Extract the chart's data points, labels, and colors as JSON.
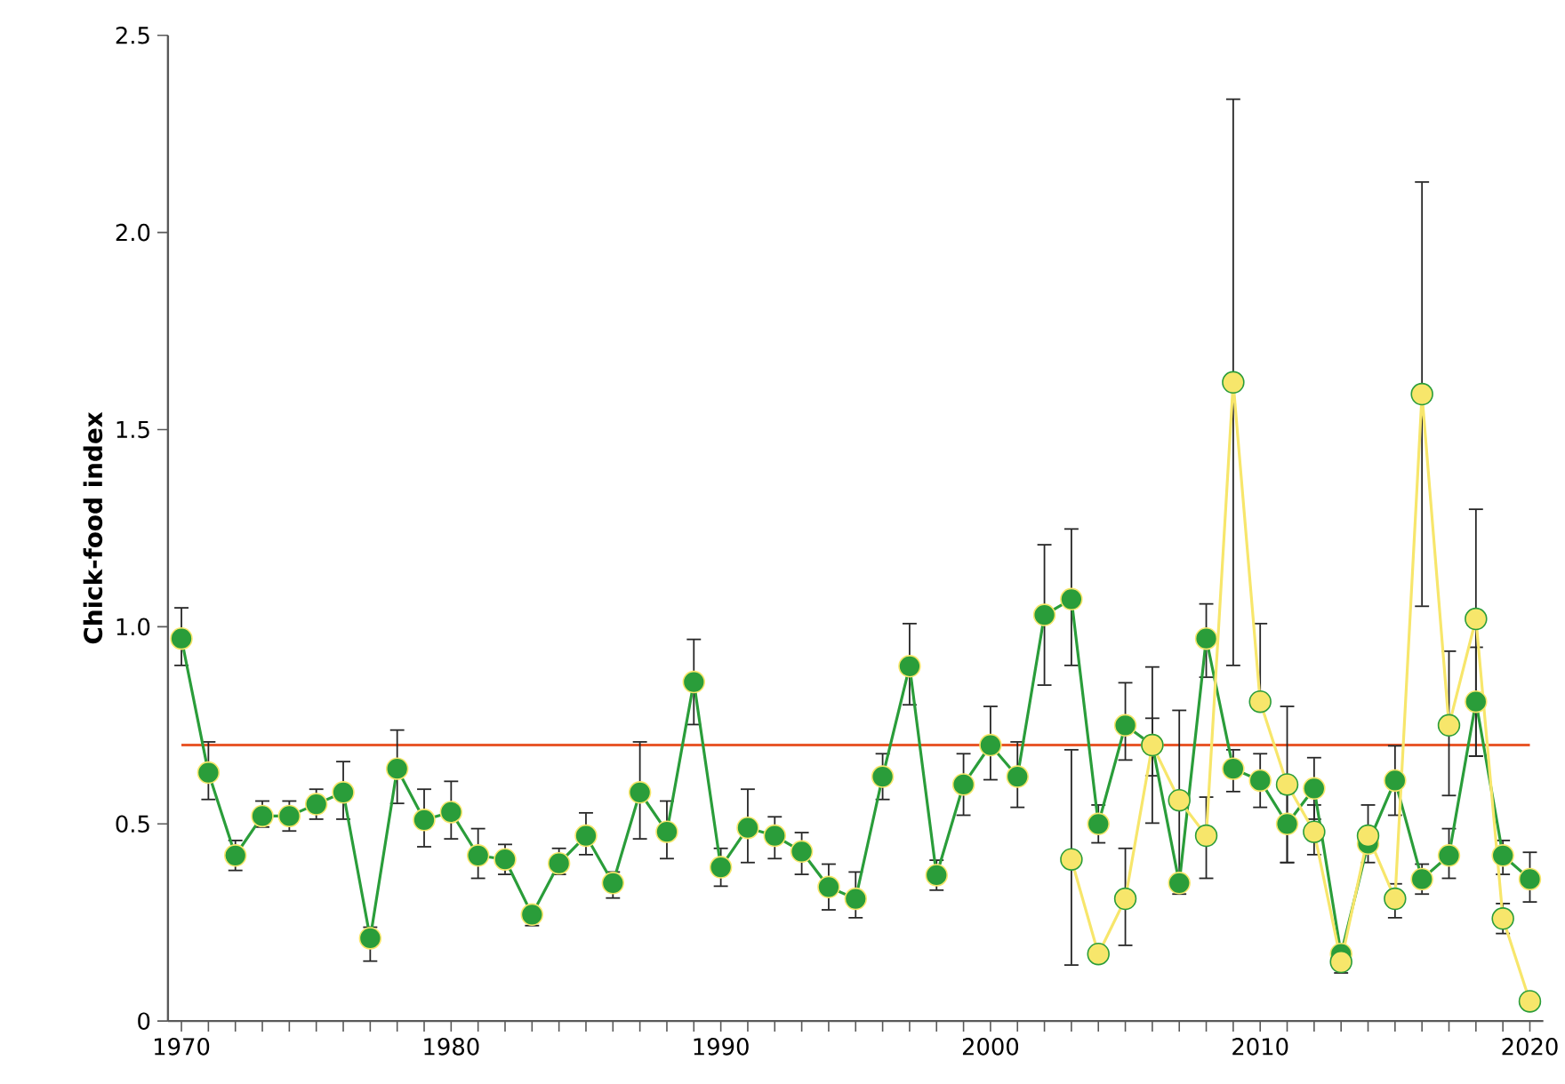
{
  "chart_data": {
    "type": "line",
    "ylabel": "Chick-food index",
    "x": [
      1970,
      1971,
      1972,
      1973,
      1974,
      1975,
      1976,
      1977,
      1978,
      1979,
      1980,
      1981,
      1982,
      1983,
      1984,
      1985,
      1986,
      1987,
      1988,
      1989,
      1990,
      1991,
      1992,
      1993,
      1994,
      1995,
      1996,
      1997,
      1998,
      1999,
      2000,
      2001,
      2002,
      2003,
      2004,
      2005,
      2006,
      2007,
      2008,
      2009,
      2010,
      2011,
      2012,
      2013,
      2014,
      2015,
      2016,
      2017,
      2018,
      2019,
      2020
    ],
    "series": [
      {
        "color": "#2a9d3a",
        "values": [
          0.97,
          0.63,
          0.42,
          0.52,
          0.52,
          0.55,
          0.58,
          0.21,
          0.64,
          0.51,
          0.53,
          0.42,
          0.41,
          0.27,
          0.4,
          0.47,
          0.35,
          0.58,
          0.48,
          0.86,
          0.39,
          0.49,
          0.47,
          0.43,
          0.34,
          0.31,
          0.62,
          0.9,
          0.37,
          0.6,
          0.7,
          0.62,
          1.03,
          1.07,
          0.5,
          0.75,
          0.7,
          0.35,
          0.97,
          0.64,
          0.61,
          0.5,
          0.59,
          0.17,
          0.45,
          0.61,
          0.36,
          0.42,
          0.81,
          0.42,
          0.36
        ],
        "errors": [
          [
            0.9,
            1.05
          ],
          [
            0.56,
            0.71
          ],
          [
            0.38,
            0.46
          ],
          [
            0.49,
            0.56
          ],
          [
            0.48,
            0.56
          ],
          [
            0.51,
            0.59
          ],
          [
            0.51,
            0.66
          ],
          [
            0.15,
            0.24
          ],
          [
            0.55,
            0.74
          ],
          [
            0.44,
            0.59
          ],
          [
            0.46,
            0.61
          ],
          [
            0.36,
            0.49
          ],
          [
            0.37,
            0.45
          ],
          [
            0.24,
            0.29
          ],
          [
            0.37,
            0.44
          ],
          [
            0.42,
            0.53
          ],
          [
            0.31,
            0.38
          ],
          [
            0.46,
            0.71
          ],
          [
            0.41,
            0.56
          ],
          [
            0.75,
            0.97
          ],
          [
            0.34,
            0.44
          ],
          [
            0.4,
            0.59
          ],
          [
            0.41,
            0.52
          ],
          [
            0.37,
            0.48
          ],
          [
            0.28,
            0.4
          ],
          [
            0.26,
            0.38
          ],
          [
            0.56,
            0.68
          ],
          [
            0.8,
            1.01
          ],
          [
            0.33,
            0.41
          ],
          [
            0.52,
            0.68
          ],
          [
            0.61,
            0.8
          ],
          [
            0.54,
            0.71
          ],
          [
            0.85,
            1.21
          ],
          [
            0.9,
            1.25
          ],
          [
            0.45,
            0.55
          ],
          [
            0.66,
            0.86
          ],
          [
            0.5,
            0.9
          ],
          null,
          [
            0.87,
            1.06
          ],
          [
            0.58,
            0.69
          ],
          [
            0.54,
            0.68
          ],
          [
            0.4,
            0.58
          ],
          [
            0.51,
            0.67
          ],
          [
            0.12,
            0.18
          ],
          [
            0.4,
            0.55
          ],
          [
            0.52,
            0.7
          ],
          [
            0.32,
            0.4
          ],
          [
            0.36,
            0.49
          ],
          [
            0.67,
            0.95
          ],
          [
            0.37,
            0.46
          ],
          [
            0.3,
            0.43
          ]
        ]
      },
      {
        "color": "#f7e66b",
        "x": [
          2003,
          2004,
          2005,
          2006,
          2007,
          2008,
          2009,
          2010,
          2011,
          2012,
          2013,
          2014,
          2015,
          2016,
          2017,
          2018,
          2019,
          2020
        ],
        "values": [
          0.41,
          0.17,
          0.31,
          0.7,
          0.56,
          0.47,
          1.62,
          0.81,
          0.6,
          0.48,
          0.15,
          0.47,
          0.31,
          1.59,
          0.75,
          1.02,
          0.26,
          0.05
        ],
        "errors": [
          [
            0.14,
            0.69
          ],
          null,
          [
            0.19,
            0.44
          ],
          [
            0.62,
            0.77
          ],
          [
            0.32,
            0.79
          ],
          [
            0.36,
            0.57
          ],
          [
            0.9,
            2.34
          ],
          [
            0.81,
            1.01
          ],
          [
            0.4,
            0.8
          ],
          [
            0.42,
            0.55
          ],
          null,
          null,
          [
            0.26,
            0.35
          ],
          [
            1.05,
            2.13
          ],
          [
            0.57,
            0.94
          ],
          [
            0.67,
            1.3
          ],
          [
            0.22,
            0.3
          ],
          null
        ]
      }
    ],
    "xlim": [
      1969.5,
      2020.5
    ],
    "ylim": [
      0,
      2.5
    ],
    "xticks": [
      1970,
      1980,
      1990,
      2000,
      2010,
      2020
    ],
    "yticks": [
      0,
      0.5,
      {
        "value": 1,
        "label": "1.0"
      },
      1.5,
      {
        "value": 2,
        "label": "2.0"
      },
      2.5
    ],
    "ref_lines": [
      {
        "axis": "y",
        "value": 0.7,
        "color": "#e8572a"
      }
    ],
    "marker": "circle",
    "grid": false
  }
}
